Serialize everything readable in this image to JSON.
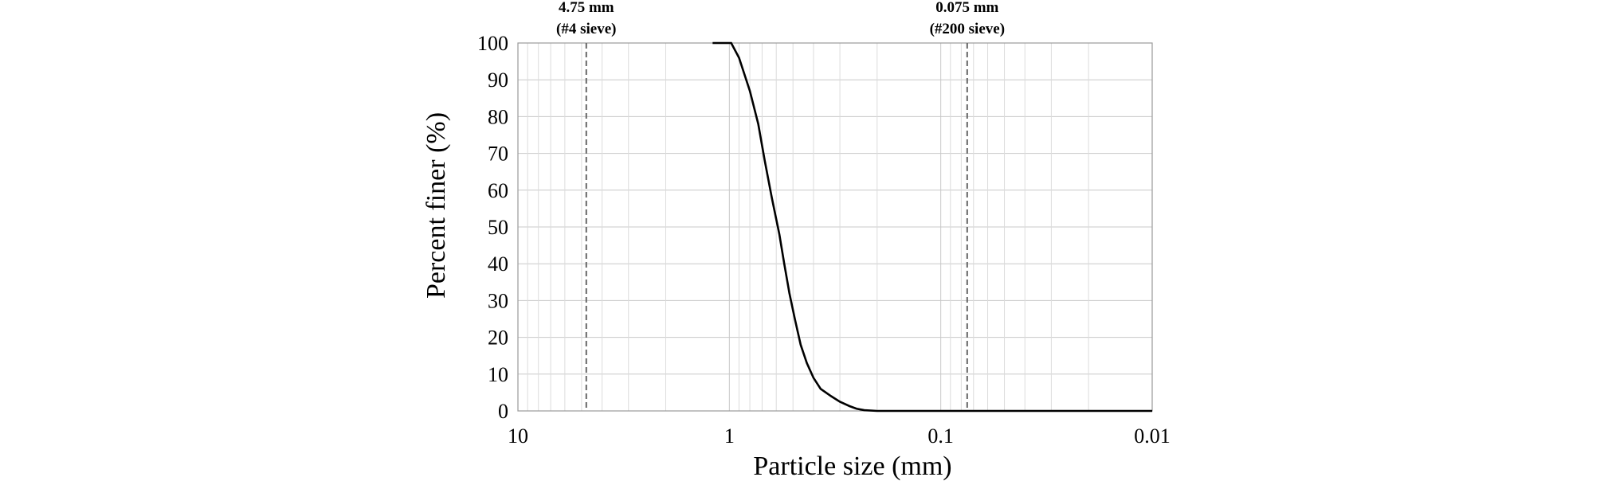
{
  "chart_data": {
    "type": "line",
    "xlabel": "Particle size (mm)",
    "ylabel": "Percent finer (%)",
    "x_scale": "log",
    "x_reversed": true,
    "xlim": [
      10,
      0.01
    ],
    "ylim": [
      0,
      100
    ],
    "x_ticks": [
      10,
      1,
      0.1,
      0.01
    ],
    "x_tick_labels": [
      "10",
      "1",
      "0.1",
      "0.01"
    ],
    "y_ticks": [
      0,
      10,
      20,
      30,
      40,
      50,
      60,
      70,
      80,
      90,
      100
    ],
    "y_tick_labels": [
      "0",
      "10",
      "20",
      "30",
      "40",
      "50",
      "60",
      "70",
      "80",
      "90",
      "100"
    ],
    "grid": true,
    "series": [
      {
        "x": [
          1.2,
          1.1,
          0.98,
          0.9,
          0.8,
          0.73,
          0.68,
          0.63,
          0.58,
          0.55,
          0.52,
          0.49,
          0.46,
          0.43,
          0.4,
          0.37,
          0.33,
          0.3,
          0.27,
          0.25,
          0.23,
          0.2,
          0.15,
          0.1,
          0.075,
          0.05,
          0.02,
          0.01
        ],
        "y": [
          100,
          100,
          100,
          96,
          87,
          78,
          68,
          58,
          48,
          40,
          32,
          25,
          18,
          13,
          9,
          6,
          4,
          2.5,
          1.3,
          0.6,
          0.2,
          0,
          0,
          0,
          0,
          0,
          0,
          0
        ]
      }
    ],
    "annotations": [
      {
        "x": 4.75,
        "line1": "4.75 mm",
        "line2": "(#4 sieve)"
      },
      {
        "x": 0.075,
        "line1": "0.075 mm",
        "line2": "(#200 sieve)"
      }
    ]
  }
}
